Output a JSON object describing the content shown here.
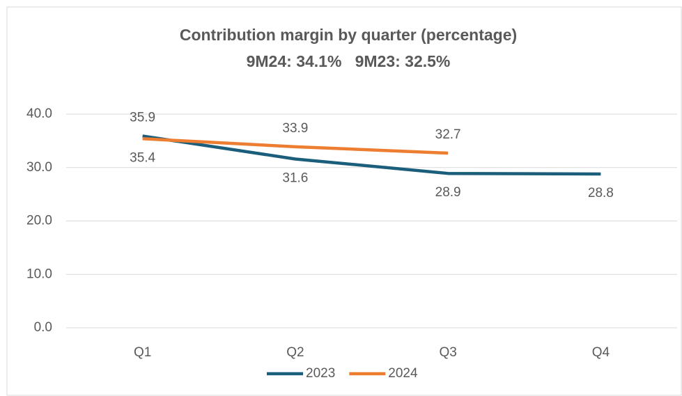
{
  "chart_data": {
    "type": "line",
    "title": "Contribution margin by quarter (percentage)",
    "subtitle": "9M24: 34.1%   9M23: 32.5%",
    "categories": [
      "Q1",
      "Q2",
      "Q3",
      "Q4"
    ],
    "series": [
      {
        "name": "2023",
        "color": "#1b5e7b",
        "values": [
          35.9,
          31.6,
          28.9,
          28.8
        ]
      },
      {
        "name": "2024",
        "color": "#ed7d31",
        "values": [
          35.4,
          33.9,
          32.7,
          null
        ]
      }
    ],
    "ylim": [
      0,
      40
    ],
    "yticks": [
      {
        "value": 0,
        "label": "0.0"
      },
      {
        "value": 10,
        "label": "10.0"
      },
      {
        "value": 20,
        "label": "20.0"
      },
      {
        "value": 30,
        "label": "30.0"
      },
      {
        "value": 40,
        "label": "40.0"
      }
    ],
    "grid": true,
    "legend": "bottom"
  }
}
